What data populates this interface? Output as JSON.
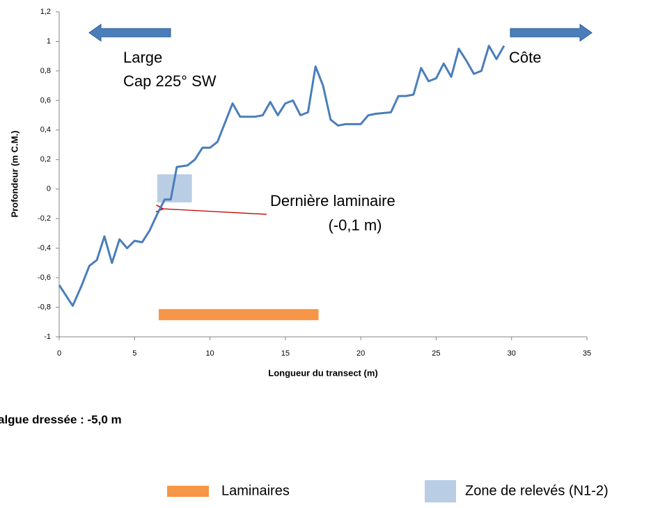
{
  "chart_data": {
    "type": "line",
    "x_label": "Longueur du transect (m)",
    "y_label": "Profondeur (m C.M.)",
    "xlim": [
      0,
      35
    ],
    "xticks": [
      0,
      5,
      10,
      15,
      20,
      25,
      30,
      35
    ],
    "ylim": [
      -1,
      1.2
    ],
    "yticks": [
      -1,
      {
        "value": -0.8,
        "label": "-0,8"
      },
      {
        "value": -0.6,
        "label": "-0,6"
      },
      {
        "value": -0.4,
        "label": "-0,4"
      },
      {
        "value": -0.2,
        "label": "-0,2"
      },
      0,
      {
        "value": 0.2,
        "label": "0,2"
      },
      {
        "value": 0.4,
        "label": "0,4"
      },
      {
        "value": 0.6,
        "label": "0,6"
      },
      {
        "value": 0.8,
        "label": "0,8"
      },
      1,
      {
        "value": 1.2,
        "label": "1,2"
      }
    ],
    "series": [
      {
        "color": "#4a7ebb",
        "x": [
          0,
          0.9,
          1.5,
          2,
          2.5,
          3,
          3.5,
          4,
          4.5,
          5,
          5.5,
          6,
          6.5,
          7,
          7.4,
          7.8,
          8.5,
          9,
          9.5,
          10,
          10.5,
          11,
          11.5,
          12,
          13,
          13.5,
          14,
          14.5,
          15,
          15.5,
          16,
          16.5,
          17,
          17.5,
          18,
          18.5,
          19,
          20,
          20.5,
          21,
          22,
          22.5,
          23,
          23.5,
          24,
          24.5,
          25,
          25.5,
          26,
          26.5,
          27,
          27.5,
          28,
          28.5,
          29,
          29.5
        ],
        "values": [
          -0.65,
          -0.79,
          -0.65,
          -0.52,
          -0.48,
          -0.32,
          -0.5,
          -0.34,
          -0.4,
          -0.35,
          -0.36,
          -0.28,
          -0.17,
          -0.07,
          -0.07,
          0.15,
          0.16,
          0.2,
          0.28,
          0.28,
          0.32,
          0.45,
          0.58,
          0.49,
          0.49,
          0.5,
          0.59,
          0.5,
          0.58,
          0.6,
          0.5,
          0.52,
          0.83,
          0.7,
          0.47,
          0.43,
          0.44,
          0.44,
          0.5,
          0.51,
          0.52,
          0.63,
          0.63,
          0.64,
          0.82,
          0.73,
          0.75,
          0.85,
          0.76,
          0.95,
          0.87,
          0.78,
          0.8,
          0.97,
          0.88,
          0.97
        ]
      }
    ],
    "laminaires": {
      "name": "Laminaires",
      "color": "#f79646",
      "x": [
        6.6,
        17.2
      ],
      "y": -0.85
    },
    "zone": {
      "name": "Zone de relevés (N1-2)",
      "color": "#b9cde5",
      "x": [
        6.5,
        8.8
      ],
      "y": [
        -0.09,
        0.1
      ]
    },
    "annotations": [
      "Large",
      "Cap 225° SW",
      "Côte",
      "Dernière laminaire",
      "(-0,1 m)"
    ],
    "note": "algue dressée : -5,0 m"
  }
}
